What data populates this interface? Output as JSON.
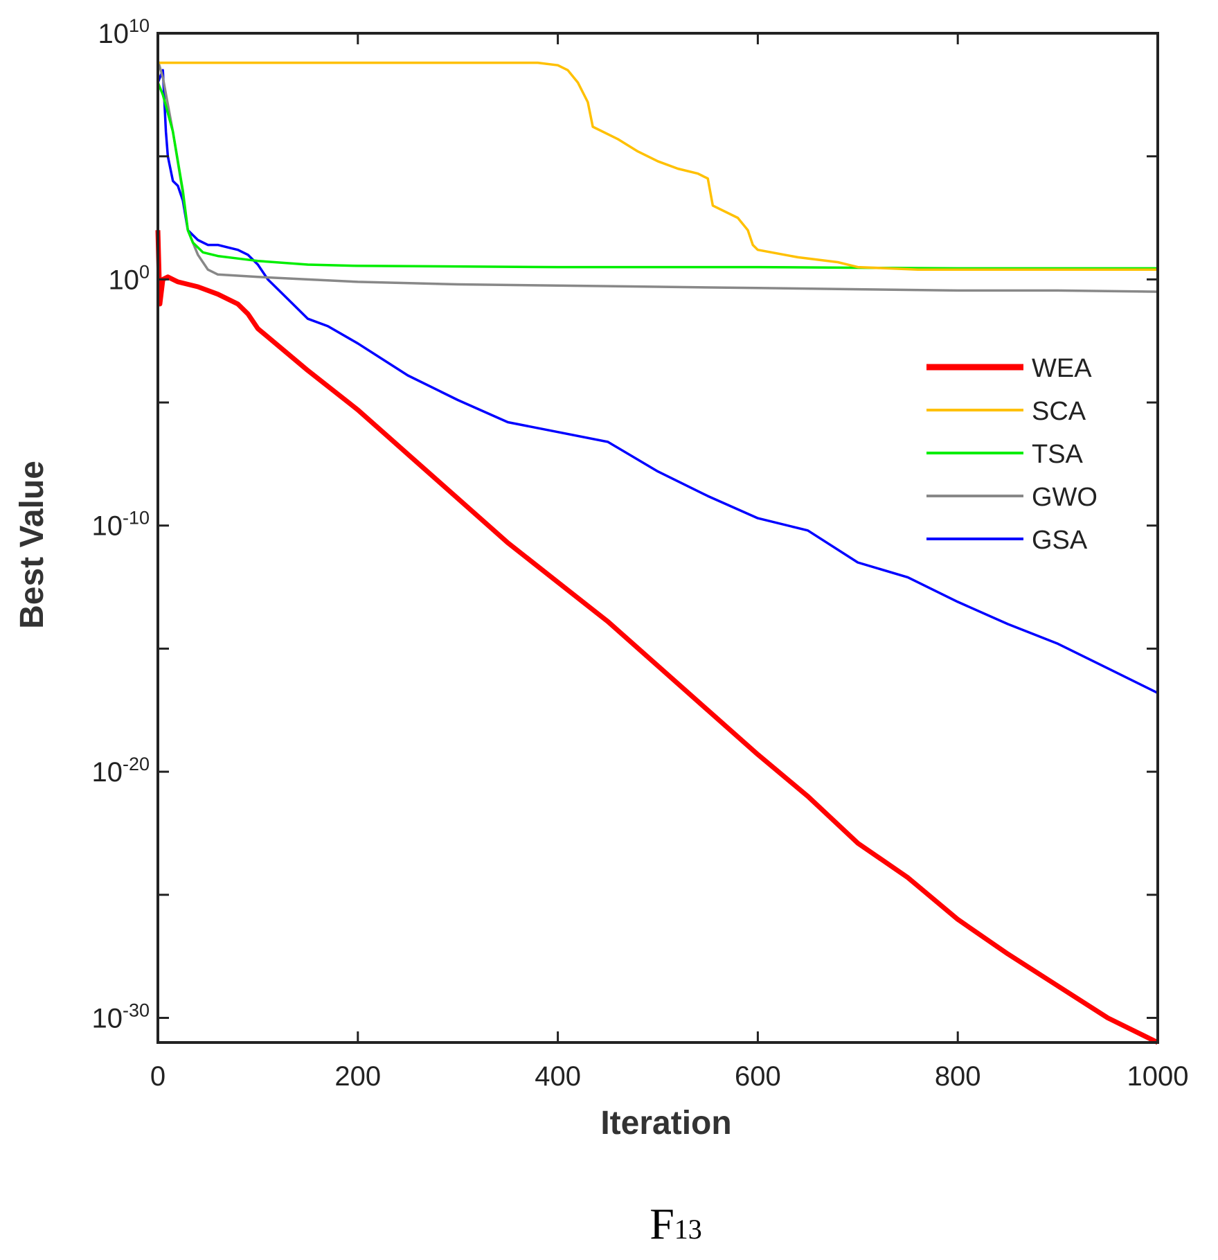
{
  "chart_data": {
    "type": "line",
    "title": "",
    "caption": "F",
    "caption_subscript": "13",
    "xlabel": "Iteration",
    "ylabel": "Best Value",
    "xlim": [
      0,
      1000
    ],
    "ylim_log10": [
      -31,
      10
    ],
    "yscale": "log",
    "x_ticks": [
      "0",
      "200",
      "400",
      "600",
      "800",
      "1000"
    ],
    "y_ticks": [
      {
        "base": "10",
        "exp": "10"
      },
      {
        "base": "10",
        "exp": "0"
      },
      {
        "base": "10",
        "exp": "-10"
      },
      {
        "base": "10",
        "exp": "-20"
      },
      {
        "base": "10",
        "exp": "-30"
      }
    ],
    "legend_position": "right",
    "series": [
      {
        "name": "WEA",
        "color": "#ff0000",
        "x": [
          0,
          2,
          5,
          10,
          20,
          40,
          60,
          80,
          90,
          100,
          150,
          200,
          250,
          300,
          350,
          400,
          450,
          500,
          550,
          600,
          650,
          700,
          750,
          800,
          850,
          900,
          950,
          1000
        ],
        "log10_y": [
          2.0,
          -1.0,
          0.0,
          0.1,
          -0.1,
          -0.3,
          -0.6,
          -1.0,
          -1.4,
          -2.0,
          -3.7,
          -5.3,
          -7.1,
          -8.9,
          -10.7,
          -12.3,
          -13.9,
          -15.7,
          -17.5,
          -19.3,
          -21.0,
          -22.9,
          -24.3,
          -26.0,
          -27.4,
          -28.7,
          -30.0,
          -31.0
        ]
      },
      {
        "name": "SCA",
        "color": "#ffc000",
        "x": [
          0,
          380,
          400,
          410,
          420,
          430,
          435,
          460,
          480,
          500,
          520,
          540,
          550,
          555,
          580,
          590,
          595,
          600,
          640,
          680,
          700,
          760,
          1000
        ],
        "log10_y": [
          8.8,
          8.8,
          8.7,
          8.5,
          8.0,
          7.2,
          6.2,
          5.7,
          5.2,
          4.8,
          4.5,
          4.3,
          4.1,
          3.0,
          2.5,
          2.0,
          1.4,
          1.2,
          0.9,
          0.7,
          0.5,
          0.4,
          0.4
        ]
      },
      {
        "name": "TSA",
        "color": "#00ee00",
        "x": [
          0,
          5,
          15,
          25,
          30,
          35,
          45,
          60,
          80,
          100,
          150,
          200,
          400,
          600,
          800,
          1000
        ],
        "log10_y": [
          8.0,
          7.5,
          6.0,
          3.6,
          2.0,
          1.5,
          1.1,
          0.95,
          0.85,
          0.75,
          0.6,
          0.55,
          0.5,
          0.5,
          0.45,
          0.45
        ]
      },
      {
        "name": "GWO",
        "color": "#888888",
        "x": [
          0,
          5,
          15,
          25,
          30,
          40,
          50,
          60,
          80,
          100,
          150,
          200,
          300,
          400,
          500,
          600,
          700,
          800,
          900,
          1000
        ],
        "log10_y": [
          8.9,
          8.2,
          6.0,
          3.5,
          2.0,
          1.0,
          0.4,
          0.2,
          0.15,
          0.1,
          0.0,
          -0.1,
          -0.2,
          -0.25,
          -0.3,
          -0.35,
          -0.4,
          -0.45,
          -0.45,
          -0.5
        ]
      },
      {
        "name": "GSA",
        "color": "#0000ff",
        "x": [
          0,
          5,
          8,
          10,
          15,
          20,
          25,
          30,
          35,
          40,
          50,
          60,
          70,
          80,
          90,
          100,
          110,
          130,
          150,
          170,
          200,
          250,
          300,
          350,
          400,
          450,
          500,
          550,
          600,
          650,
          700,
          750,
          800,
          850,
          900,
          950,
          1000
        ],
        "log10_y": [
          8.0,
          8.5,
          6.0,
          5.0,
          4.0,
          3.8,
          3.2,
          2.0,
          1.8,
          1.6,
          1.4,
          1.4,
          1.3,
          1.2,
          1.0,
          0.6,
          0.0,
          -0.8,
          -1.6,
          -1.9,
          -2.6,
          -3.9,
          -4.9,
          -5.8,
          -6.2,
          -6.6,
          -7.8,
          -8.8,
          -9.7,
          -10.2,
          -11.5,
          -12.1,
          -13.1,
          -14.0,
          -14.8,
          -15.8,
          -16.8
        ]
      }
    ]
  }
}
